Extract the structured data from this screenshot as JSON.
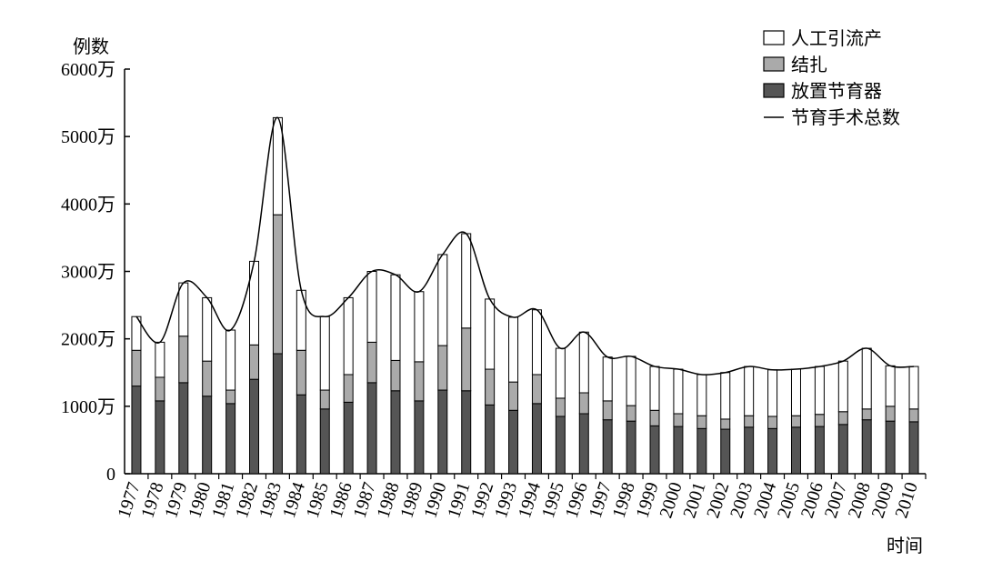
{
  "chart_data": {
    "type": "bar",
    "stacked": true,
    "y_label": "例数",
    "x_label": "时间",
    "categories": [
      "1977",
      "1978",
      "1979",
      "1980",
      "1981",
      "1982",
      "1983",
      "1984",
      "1985",
      "1986",
      "1987",
      "1988",
      "1989",
      "1990",
      "1991",
      "1992",
      "1993",
      "1994",
      "1995",
      "1996",
      "1997",
      "1998",
      "1999",
      "2000",
      "2001",
      "2002",
      "2003",
      "2004",
      "2005",
      "2006",
      "2007",
      "2008",
      "2009",
      "2010"
    ],
    "series": [
      {
        "name": "人工引流产",
        "type": "bar",
        "color": "#ffffff",
        "values": [
          500,
          520,
          790,
          940,
          890,
          1240,
          1440,
          890,
          1090,
          1140,
          1050,
          1270,
          1040,
          1350,
          1400,
          1040,
          960,
          960,
          740,
          900,
          650,
          730,
          650,
          660,
          610,
          690,
          730,
          690,
          690,
          710,
          750,
          900,
          600,
          630
        ]
      },
      {
        "name": "结扎",
        "type": "bar",
        "color": "#aaaaaa",
        "values": [
          530,
          350,
          690,
          520,
          200,
          510,
          2060,
          660,
          280,
          410,
          600,
          450,
          580,
          660,
          930,
          530,
          420,
          430,
          270,
          310,
          280,
          230,
          230,
          190,
          190,
          150,
          170,
          180,
          170,
          180,
          190,
          160,
          220,
          190
        ]
      },
      {
        "name": "放置节育器",
        "type": "bar",
        "color": "#555555",
        "values": [
          1300,
          1080,
          1350,
          1150,
          1040,
          1400,
          1780,
          1170,
          960,
          1060,
          1350,
          1230,
          1080,
          1240,
          1230,
          1020,
          940,
          1040,
          850,
          890,
          800,
          780,
          710,
          700,
          670,
          660,
          690,
          670,
          690,
          700,
          730,
          800,
          780,
          770
        ]
      },
      {
        "name": "节育手术总数",
        "type": "line",
        "color": "#000000",
        "values": [
          2330,
          1950,
          2830,
          2610,
          2130,
          3150,
          5280,
          2720,
          2330,
          2610,
          3000,
          2950,
          2700,
          3250,
          3560,
          2590,
          2320,
          2430,
          1860,
          2100,
          1730,
          1740,
          1590,
          1550,
          1470,
          1500,
          1590,
          1540,
          1550,
          1590,
          1670,
          1860,
          1600,
          1590
        ]
      }
    ],
    "ylim": [
      0,
      6000
    ],
    "yticks": [
      0,
      {
        "value": 1000,
        "label": "1000万"
      },
      {
        "value": 2000,
        "label": "2000万"
      },
      {
        "value": 3000,
        "label": "3000万"
      },
      {
        "value": 4000,
        "label": "4000万"
      },
      {
        "value": 5000,
        "label": "5000万"
      },
      {
        "value": 6000,
        "label": "6000万"
      }
    ],
    "legend": "upper right"
  }
}
